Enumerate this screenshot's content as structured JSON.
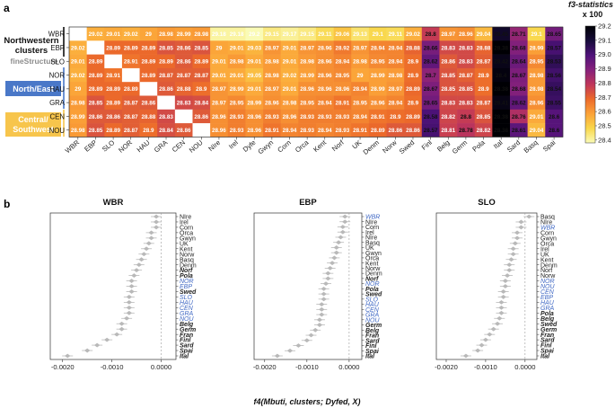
{
  "figure": {
    "panel_a_letter": "a",
    "panel_b_letter": "b",
    "colors": {
      "scale": [
        "#fafbb6",
        "#f9d74b",
        "#fba238",
        "#ec6a2a",
        "#c0365a",
        "#86217b",
        "#4f127a",
        "#170c3a",
        "#000004"
      ],
      "northwestern": "#111111",
      "north_east_box": "#4a78c8",
      "central_box": "#f7c54c",
      "fine_structure": "#8c8c8c",
      "blue_label": "#4169c4",
      "points": "#b9b9b9"
    }
  },
  "heatmap": {
    "group_labels": {
      "northwestern": "Northwestern clusters",
      "fine_structure": "fineStructure",
      "north_east": "North/East",
      "central": "Central/ Southwest"
    },
    "legend": {
      "title": "f3-statistics x 100",
      "ticks": [
        "29.2",
        "29.1",
        "29.0",
        "28.9",
        "28.8",
        "28.7",
        "28.6",
        "28.5",
        "28.4"
      ]
    }
  },
  "chart_data": [
    {
      "type": "heatmap",
      "title": "f3-statistics x 100",
      "rows": [
        "WBR",
        "EBP",
        "SLO",
        "NOR",
        "HAU",
        "GRA",
        "CEN",
        "NOU"
      ],
      "columns": [
        "WBR",
        "EBP",
        "SLO",
        "NOR",
        "HAU",
        "GRA",
        "CEN",
        "NOU",
        "NIre",
        "Irel",
        "Dyfe",
        "Gwyn",
        "Corn",
        "Orca",
        "Kent",
        "Norf",
        "UK",
        "Denm",
        "Norw",
        "Swed",
        "Finl",
        "Belg",
        "Germ",
        "Pola",
        "Ital",
        "Sard",
        "Basq",
        "Spai"
      ],
      "values": [
        [
          null,
          "29.02",
          "29.01",
          "29.02",
          "29",
          "28.98",
          "28.99",
          "28.98",
          "29.18",
          "29.18",
          "29.2",
          "29.15",
          "29.17",
          "29.15",
          "29.11",
          "29.06",
          "29.13",
          "29.1",
          "29.11",
          "29.02",
          "28.8",
          "28.97",
          "28.96",
          "29.04",
          "28.45",
          "28.71",
          "29.1",
          "28.65"
        ],
        [
          "29.02",
          null,
          "28.89",
          "28.89",
          "28.89",
          "28.85",
          "28.86",
          "28.85",
          "29",
          "29.01",
          "29.03",
          "28.97",
          "29.01",
          "28.97",
          "28.96",
          "28.92",
          "28.97",
          "28.94",
          "28.94",
          "28.88",
          "28.66",
          "28.83",
          "28.83",
          "28.88",
          "28.38",
          "28.68",
          "28.99",
          "28.57"
        ],
        [
          "29.01",
          "28.89",
          null,
          "28.91",
          "28.89",
          "28.89",
          "28.86",
          "28.89",
          "29.01",
          "28.98",
          "29.01",
          "28.98",
          "29.01",
          "28.98",
          "28.96",
          "28.94",
          "28.98",
          "28.95",
          "28.94",
          "28.9",
          "28.62",
          "28.86",
          "28.83",
          "28.87",
          "28.42",
          "28.64",
          "28.95",
          "28.53"
        ],
        [
          "29.02",
          "28.89",
          "28.91",
          null,
          "28.89",
          "28.87",
          "28.87",
          "28.87",
          "29.01",
          "29.01",
          "29.05",
          "28.98",
          "29.02",
          "28.99",
          "28.96",
          "28.95",
          "29",
          "28.99",
          "28.98",
          "28.9",
          "28.7",
          "28.85",
          "28.87",
          "28.9",
          "28.4",
          "28.67",
          "28.98",
          "28.56"
        ],
        [
          "29",
          "28.89",
          "28.89",
          "28.89",
          null,
          "28.86",
          "28.88",
          "28.9",
          "28.97",
          "28.99",
          "29.01",
          "28.97",
          "29.01",
          "28.96",
          "28.96",
          "28.96",
          "28.94",
          "28.99",
          "28.97",
          "28.89",
          "28.67",
          "28.85",
          "28.85",
          "28.9",
          "28.38",
          "28.68",
          "28.98",
          "28.54"
        ],
        [
          "28.98",
          "28.85",
          "28.89",
          "28.87",
          "28.86",
          null,
          "28.83",
          "28.84",
          "28.97",
          "28.95",
          "28.99",
          "28.96",
          "28.98",
          "28.95",
          "28.94",
          "28.91",
          "28.95",
          "28.96",
          "28.94",
          "28.9",
          "28.65",
          "28.83",
          "28.83",
          "28.87",
          "28.41",
          "28.62",
          "28.96",
          "28.55"
        ],
        [
          "28.99",
          "28.86",
          "28.86",
          "28.87",
          "28.88",
          "28.83",
          null,
          "28.86",
          "28.96",
          "28.93",
          "28.96",
          "28.93",
          "28.96",
          "28.93",
          "28.93",
          "28.93",
          "28.94",
          "28.91",
          "28.9",
          "28.89",
          "28.58",
          "28.82",
          "28.8",
          "28.85",
          "28.38",
          "28.76",
          "29.01",
          "28.6"
        ],
        [
          "28.98",
          "28.85",
          "28.89",
          "28.87",
          "28.9",
          "28.84",
          "28.86",
          null,
          "28.96",
          "28.93",
          "28.96",
          "28.91",
          "28.94",
          "28.93",
          "28.94",
          "28.93",
          "28.91",
          "28.89",
          "28.86",
          "28.86",
          "28.57",
          "28.81",
          "28.78",
          "28.82",
          "28.38",
          "28.61",
          "29.04",
          "28.6"
        ]
      ],
      "color_range": [
        28.38,
        29.2
      ]
    },
    {
      "type": "scatter",
      "panel": "WBR",
      "title": "WBR",
      "categories": [
        "NIre",
        "Irel",
        "Corn",
        "Orca",
        "Gwyn",
        "UK",
        "Kent",
        "Norw",
        "Basq",
        "Denm",
        "Norf",
        "Pola",
        "NOR",
        "EBP",
        "Swed",
        "SLO",
        "HAU",
        "CEN",
        "GRA",
        "NOU",
        "Belg",
        "Germ",
        "Fran",
        "Finl",
        "Sard",
        "Spai",
        "Ital"
      ],
      "emphasis": [
        "normal",
        "normal",
        "normal",
        "normal",
        "normal",
        "normal",
        "normal",
        "normal",
        "normal",
        "normal",
        "bold",
        "bold",
        "blue",
        "blue",
        "bold",
        "blue",
        "blue",
        "blue",
        "blue",
        "blue",
        "bold",
        "bold",
        "bold",
        "bold",
        "bold",
        "bold",
        "bold"
      ],
      "values": [
        -0.0001,
        -0.0001,
        -0.0001,
        -0.0002,
        -0.0002,
        -0.00025,
        -0.0003,
        -0.00035,
        -0.0004,
        -0.00045,
        -0.0005,
        -0.00055,
        -0.0006,
        -0.0006,
        -0.0006,
        -0.00065,
        -0.00065,
        -0.00065,
        -0.00065,
        -0.0007,
        -0.0008,
        -0.0008,
        -0.0009,
        -0.0011,
        -0.0013,
        -0.0015,
        -0.0019
      ],
      "xticks": [
        -0.002,
        -0.001,
        0.0
      ],
      "xtick_labels": [
        "-0.0020",
        "-0.0010",
        "0.0000"
      ],
      "xlim": [
        -0.00225,
        0.0003
      ]
    },
    {
      "type": "scatter",
      "panel": "EBP",
      "title": "EBP",
      "categories": [
        "WBR",
        "NIre",
        "Corn",
        "Irel",
        "NIre",
        "Basq",
        "UK",
        "Gwyn",
        "Orca",
        "Kent",
        "Norw",
        "Denm",
        "Norf",
        "NOR",
        "Pola",
        "Swed",
        "SLO",
        "HAU",
        "CEN",
        "GRA",
        "NOU",
        "Germ",
        "Belg",
        "Fran",
        "Sard",
        "Finl",
        "Spai",
        "Ital"
      ],
      "emphasis": [
        "blue",
        "normal",
        "normal",
        "normal",
        "normal",
        "normal",
        "normal",
        "normal",
        "normal",
        "normal",
        "normal",
        "normal",
        "bold",
        "blue",
        "bold",
        "bold",
        "blue",
        "blue",
        "blue",
        "blue",
        "blue",
        "bold",
        "bold",
        "bold",
        "bold",
        "bold",
        "bold",
        "bold"
      ],
      "values": [
        -0.0001,
        -0.0001,
        -0.00015,
        -0.00015,
        -0.0002,
        -0.00025,
        -0.0003,
        -0.0003,
        -0.00035,
        -0.0004,
        -0.00045,
        -0.0005,
        -0.0005,
        -0.00055,
        -0.0006,
        -0.0006,
        -0.0006,
        -0.00065,
        -0.00065,
        -0.00065,
        -0.0007,
        -0.0007,
        -0.0008,
        -0.0009,
        -0.001,
        -0.0012,
        -0.0014,
        -0.0017
      ],
      "xticks": [
        -0.002,
        -0.001,
        0.0
      ],
      "xtick_labels": [
        "-0.0020",
        "-0.0010",
        "0.0000"
      ],
      "xlim": [
        -0.00225,
        0.0003
      ]
    },
    {
      "type": "scatter",
      "panel": "SLO",
      "title": "SLO",
      "categories": [
        "Basq",
        "NIre",
        "WBR",
        "Corn",
        "Gwyn",
        "Orca",
        "Irel",
        "UK",
        "Kent",
        "Denm",
        "Norf",
        "Norw",
        "NOR",
        "NOU",
        "CEN",
        "EBP",
        "HAU",
        "GRA",
        "Pola",
        "Belg",
        "Swed",
        "Germ",
        "Fran",
        "Sard",
        "Finl",
        "Spai",
        "Ital"
      ],
      "emphasis": [
        "normal",
        "normal",
        "blue",
        "normal",
        "normal",
        "normal",
        "normal",
        "normal",
        "normal",
        "normal",
        "normal",
        "normal",
        "blue",
        "blue",
        "blue",
        "blue",
        "blue",
        "blue",
        "bold",
        "bold",
        "bold",
        "bold",
        "bold",
        "bold",
        "bold",
        "bold",
        "bold"
      ],
      "values": [
        0.0001,
        -0.0001,
        -0.0001,
        -0.0002,
        -0.0002,
        -0.00025,
        -0.0003,
        -0.0003,
        -0.00035,
        -0.0004,
        -0.0004,
        -0.00045,
        -0.0005,
        -0.0005,
        -0.00055,
        -0.00055,
        -0.0006,
        -0.0006,
        -0.0006,
        -0.00065,
        -0.0007,
        -0.0008,
        -0.0009,
        -0.001,
        -0.0011,
        -0.0012,
        -0.0015
      ],
      "xticks": [
        -0.002,
        -0.001,
        0.0
      ],
      "xtick_labels": [
        "-0.0020",
        "-0.0010",
        "0.0000"
      ],
      "xlim": [
        -0.00225,
        0.0003
      ]
    }
  ],
  "panel_b": {
    "xlabel": "f4(Mbuti, clusters; Dyfed, X)"
  }
}
